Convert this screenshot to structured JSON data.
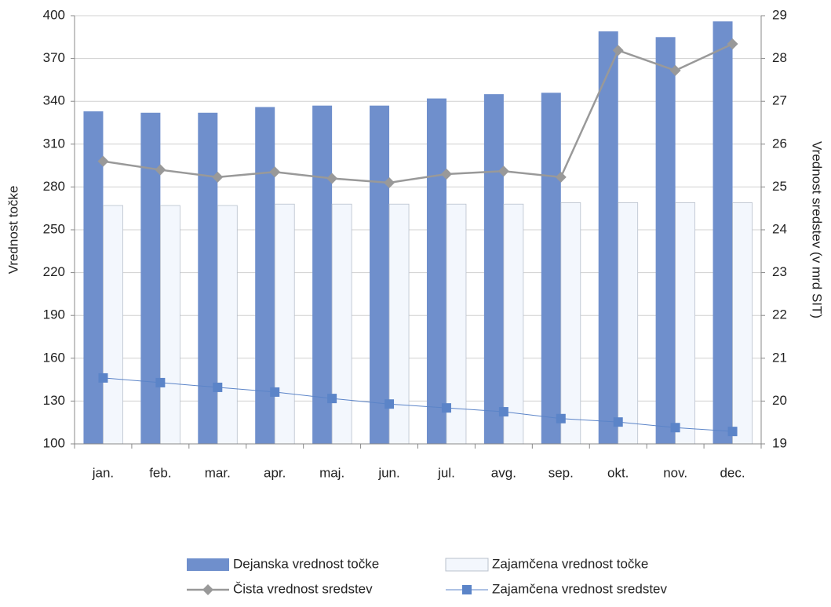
{
  "chart_data": {
    "type": "bar",
    "categories": [
      "jan.",
      "feb.",
      "mar.",
      "apr.",
      "maj.",
      "jun.",
      "jul.",
      "avg.",
      "sep.",
      "okt.",
      "nov.",
      "dec."
    ],
    "series": [
      {
        "name": "Dejanska vrednost točke",
        "type": "bar",
        "color": "#6f8fcc",
        "values": [
          333,
          332,
          332,
          336,
          337,
          337,
          342,
          345,
          346,
          389,
          385,
          396
        ]
      },
      {
        "name": "Zajamčena vrednost točke",
        "type": "bar",
        "color": "#f3f7fd",
        "values": [
          267,
          267,
          267,
          268,
          268,
          268,
          268,
          268,
          269,
          269,
          269,
          269
        ]
      },
      {
        "name": "Čista vrednost sredstev",
        "type": "line",
        "axis": "y2",
        "color": "#999999",
        "marker": "diamond",
        "values": [
          25.6,
          25.4,
          25.23,
          25.35,
          25.2,
          25.1,
          25.3,
          25.37,
          25.23,
          28.19,
          27.72,
          28.34
        ]
      },
      {
        "name": "Zajamčena vrednost sredstev",
        "type": "line",
        "axis": "y2",
        "color": "#5b84c8",
        "marker": "square",
        "values": [
          20.54,
          20.43,
          20.32,
          20.21,
          20.06,
          19.93,
          19.84,
          19.75,
          19.59,
          19.51,
          19.38,
          19.29
        ]
      }
    ],
    "ylabel": "Vrednost točke",
    "y2label": "Vrednost sredstev (v mrd SIT)",
    "ylim": [
      100,
      400
    ],
    "yticks": [
      100,
      130,
      160,
      190,
      220,
      250,
      280,
      310,
      340,
      370,
      400
    ],
    "y2lim": [
      19,
      29
    ],
    "y2ticks": [
      19,
      20,
      21,
      22,
      23,
      24,
      25,
      26,
      27,
      28,
      29
    ],
    "grid": true,
    "legend": "bottom"
  }
}
